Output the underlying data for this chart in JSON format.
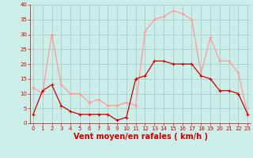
{
  "x": [
    0,
    1,
    2,
    3,
    4,
    5,
    6,
    7,
    8,
    9,
    10,
    11,
    12,
    13,
    14,
    15,
    16,
    17,
    18,
    19,
    20,
    21,
    22,
    23
  ],
  "wind_avg": [
    3,
    11,
    13,
    6,
    4,
    3,
    3,
    3,
    3,
    1,
    2,
    15,
    16,
    21,
    21,
    20,
    20,
    20,
    16,
    15,
    11,
    11,
    10,
    3
  ],
  "wind_gust": [
    12,
    10,
    30,
    13,
    10,
    10,
    7,
    8,
    6,
    6,
    7,
    6,
    31,
    35,
    36,
    38,
    37,
    35,
    17,
    29,
    21,
    21,
    17,
    3
  ],
  "ylim": [
    0,
    40
  ],
  "yticks": [
    0,
    5,
    10,
    15,
    20,
    25,
    30,
    35,
    40
  ],
  "xlabel": "Vent moyen/en rafales ( km/h )",
  "bg_color": "#cceee8",
  "grid_color": "#aacccc",
  "avg_color": "#cc0000",
  "gust_color": "#ff9999",
  "xlabel_color": "#cc0000",
  "tick_color": "#cc0000",
  "xlabel_fontsize": 7,
  "tick_fontsize": 5
}
